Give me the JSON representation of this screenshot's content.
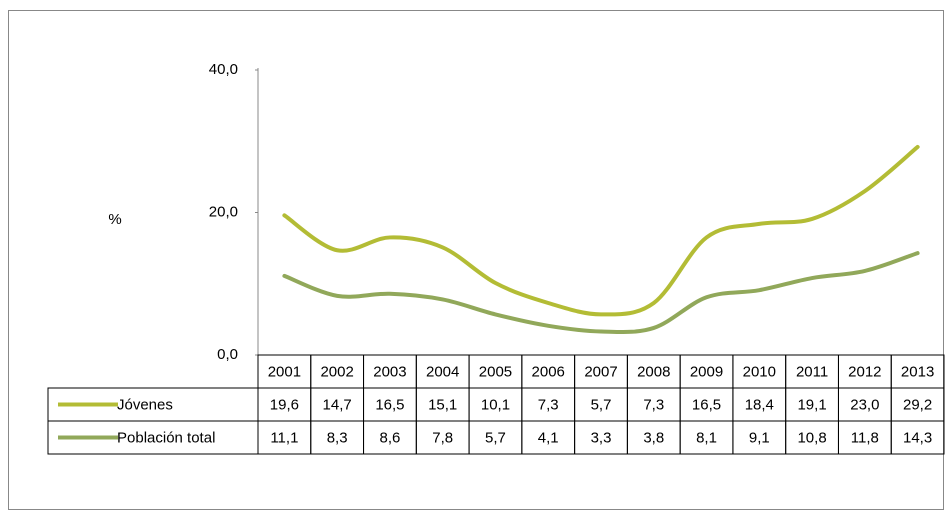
{
  "chart_data": {
    "type": "line",
    "y_label": "%",
    "categories": [
      "2001",
      "2002",
      "2003",
      "2004",
      "2005",
      "2006",
      "2007",
      "2008",
      "2009",
      "2010",
      "2011",
      "2012",
      "2013"
    ],
    "series": [
      {
        "name": "Jóvenes",
        "color": "#b3bc35",
        "values": [
          19.6,
          14.7,
          16.5,
          15.1,
          10.1,
          7.3,
          5.7,
          7.3,
          16.5,
          18.4,
          19.1,
          23.0,
          29.2
        ],
        "value_labels": [
          "19,6",
          "14,7",
          "16,5",
          "15,1",
          "10,1",
          "7,3",
          "5,7",
          "7,3",
          "16,5",
          "18,4",
          "19,1",
          "23,0",
          "29,2"
        ]
      },
      {
        "name": "Población total",
        "color": "#91a85a",
        "values": [
          11.1,
          8.3,
          8.6,
          7.8,
          5.7,
          4.1,
          3.3,
          3.8,
          8.1,
          9.1,
          10.8,
          11.8,
          14.3
        ],
        "value_labels": [
          "11,1",
          "8,3",
          "8,6",
          "7,8",
          "5,7",
          "4,1",
          "3,3",
          "3,8",
          "8,1",
          "9,1",
          "10,8",
          "11,8",
          "14,3"
        ]
      }
    ],
    "ylim": [
      0,
      40
    ],
    "yticks": [
      {
        "value": 0,
        "label": "0,0"
      },
      {
        "value": 20,
        "label": "20,0"
      },
      {
        "value": 40,
        "label": "40,0"
      }
    ],
    "grid": false
  }
}
